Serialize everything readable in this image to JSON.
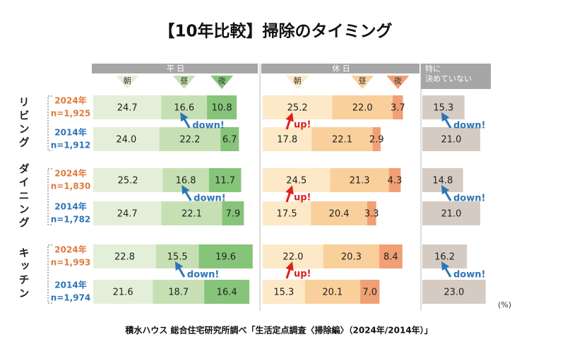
{
  "chart_data": {
    "type": "stacked-bar",
    "title": "【10年比較】掃除のタイミング",
    "groups": [
      "平 日",
      "休 日"
    ],
    "rooms": [
      "リビング",
      "ダイニング",
      "キッチン"
    ],
    "row_years": [
      "2024年",
      "2014年",
      "2024年",
      "2014年",
      "2024年",
      "2014年"
    ],
    "row_n": [
      "n=1,925",
      "n=1,912",
      "n=1,830",
      "n=1,782",
      "n=1,993",
      "n=1,974"
    ],
    "year_colors": [
      "#e07a3a",
      "#2e75b6"
    ],
    "series": [
      {
        "name": "朝",
        "group": 0,
        "color": "#e4efd9",
        "values": [
          24.7,
          24.0,
          25.2,
          24.7,
          22.8,
          21.6
        ],
        "value_labels": [
          "24.7",
          "24.0",
          "25.2",
          "24.7",
          "22.8",
          "21.6"
        ]
      },
      {
        "name": "昼",
        "group": 0,
        "color": "#c6e0b4",
        "values": [
          16.6,
          22.2,
          16.8,
          22.1,
          15.5,
          18.7
        ],
        "value_labels": [
          "16.6",
          "22.2",
          "16.8",
          "22.1",
          "15.5",
          "18.7"
        ]
      },
      {
        "name": "夜",
        "group": 0,
        "color": "#86c47a",
        "values": [
          10.8,
          6.7,
          11.7,
          7.9,
          19.6,
          16.4
        ],
        "value_labels": [
          "10.8",
          "6.7",
          "11.7",
          "7.9",
          "19.6",
          "16.4"
        ]
      },
      {
        "name": "朝",
        "group": 1,
        "color": "#fde9c7",
        "values": [
          25.2,
          17.8,
          24.5,
          17.5,
          22.0,
          15.3
        ],
        "value_labels": [
          "25.2",
          "17.8",
          "24.5",
          "17.5",
          "22.0",
          "15.3"
        ]
      },
      {
        "name": "昼",
        "group": 1,
        "color": "#f9d09b",
        "values": [
          22.0,
          22.1,
          21.3,
          20.4,
          20.3,
          20.1
        ],
        "value_labels": [
          "22.0",
          "22.1",
          "21.3",
          "20.4",
          "20.3",
          "20.1"
        ]
      },
      {
        "name": "夜",
        "group": 1,
        "color": "#f0a074",
        "values": [
          3.7,
          2.9,
          4.3,
          3.3,
          8.4,
          7.0
        ],
        "value_labels": [
          "3.7",
          "2.9",
          "4.3",
          "3.3",
          "8.4",
          "7.0"
        ]
      },
      {
        "name": "特に\n決めていない",
        "group": 2,
        "color": "#d6cbc2",
        "values": [
          15.3,
          21.0,
          14.8,
          21.0,
          16.2,
          23.0
        ],
        "value_labels": [
          "15.3",
          "21.0",
          "14.8",
          "21.0",
          "16.2",
          "23.0"
        ]
      }
    ],
    "annotations": [
      "down!",
      "up!",
      "down!",
      "down!",
      "up!",
      "down!",
      "down!",
      "up!",
      "down!"
    ],
    "annotation_colors": [
      "#2e75b6",
      "#e0201a"
    ],
    "unit": "(%)",
    "source": "積水ハウス 総合住宅研究所調べ「生活定点調査〈掃除編〉（2024年/2014年）」"
  }
}
